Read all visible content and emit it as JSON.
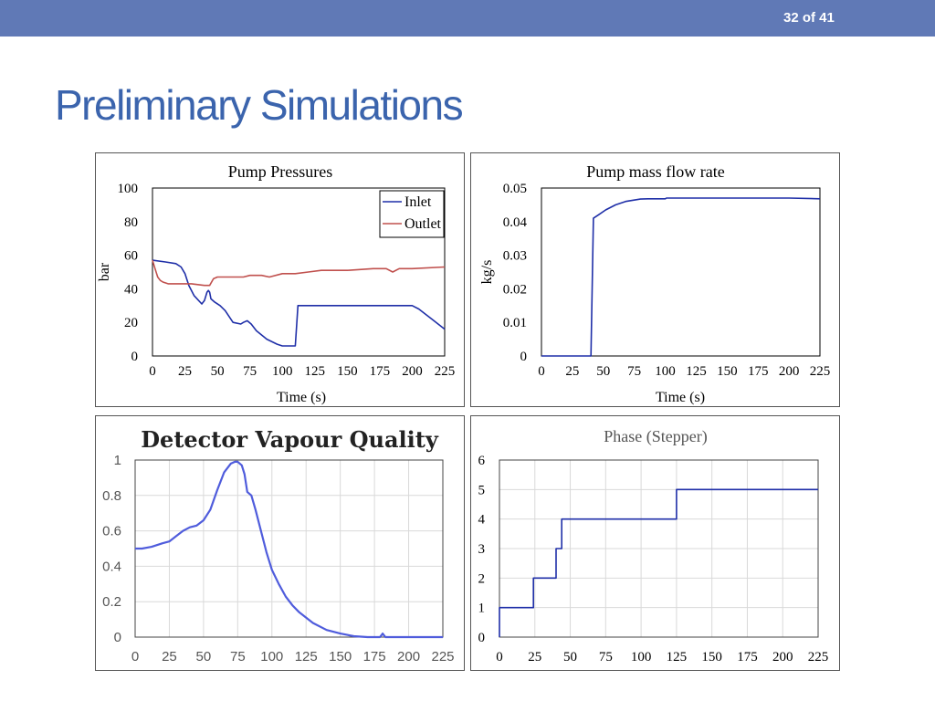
{
  "slide": {
    "counter": "32 of 41",
    "title": "Preliminary Simulations"
  },
  "colors": {
    "header_bar": "#6079b6",
    "title": "#3b64ad",
    "inlet": "#1f2fa8",
    "outlet": "#c0504d",
    "quality": "#4f5cdc",
    "phase": "#1f2fa8"
  },
  "chart_data": [
    {
      "id": "pump-pressures",
      "type": "line",
      "title": "Pump Pressures",
      "xlabel": "Time (s)",
      "ylabel": "bar",
      "xlim": [
        0,
        225
      ],
      "ylim": [
        0,
        100
      ],
      "xticks": [
        "0",
        "25",
        "50",
        "75",
        "100",
        "125",
        "150",
        "175",
        "200",
        "225"
      ],
      "yticks": [
        "0",
        "20",
        "40",
        "60",
        "80",
        "100"
      ],
      "grid": false,
      "legend": "top-right",
      "series": [
        {
          "name": "Inlet",
          "color": "#1f2fa8",
          "x": [
            0,
            10,
            18,
            22,
            25,
            28,
            32,
            38,
            40,
            42,
            43,
            44,
            45,
            48,
            52,
            56,
            62,
            68,
            70,
            73,
            76,
            80,
            88,
            96,
            100,
            106,
            110,
            112,
            200,
            205,
            215,
            225
          ],
          "y": [
            57,
            56,
            55,
            53,
            49,
            42,
            36,
            31,
            33,
            38,
            39,
            38,
            34,
            32,
            30,
            27,
            20,
            19,
            20,
            21,
            19,
            15,
            10,
            7,
            6,
            6,
            6,
            30,
            30,
            28,
            22,
            16
          ]
        },
        {
          "name": "Outlet",
          "color": "#c0504d",
          "x": [
            0,
            2,
            4,
            6,
            8,
            12,
            20,
            30,
            40,
            44,
            47,
            50,
            60,
            70,
            75,
            80,
            84,
            90,
            100,
            110,
            120,
            130,
            150,
            170,
            180,
            185,
            190,
            200,
            225
          ],
          "y": [
            57,
            52,
            47,
            45,
            44,
            43,
            43,
            43,
            42,
            42,
            46,
            47,
            47,
            47,
            48,
            48,
            48,
            47,
            49,
            49,
            50,
            51,
            51,
            52,
            52,
            50,
            52,
            52,
            53
          ]
        }
      ]
    },
    {
      "id": "pump-mass-flow",
      "type": "line",
      "title": "Pump mass flow rate",
      "xlabel": "Time (s)",
      "ylabel": "kg/s",
      "xlim": [
        0,
        225
      ],
      "ylim": [
        0,
        0.05
      ],
      "xticks": [
        "0",
        "25",
        "50",
        "75",
        "100",
        "125",
        "150",
        "175",
        "200",
        "225"
      ],
      "yticks": [
        "0",
        "0.01",
        "0.02",
        "0.03",
        "0.04",
        "0.05"
      ],
      "grid": false,
      "series": [
        {
          "color": "#1f2fa8",
          "x": [
            0,
            38,
            40,
            42,
            46,
            52,
            60,
            68,
            76,
            80,
            86,
            100,
            101,
            130,
            160,
            200,
            225
          ],
          "y": [
            0,
            0,
            0,
            0.041,
            0.042,
            0.0435,
            0.045,
            0.046,
            0.0465,
            0.0467,
            0.0468,
            0.0468,
            0.047,
            0.047,
            0.047,
            0.047,
            0.0468
          ]
        }
      ]
    },
    {
      "id": "detector-vapour-quality",
      "type": "line",
      "title": "Detector Vapour Quality",
      "xlabel": "",
      "ylabel": "",
      "xlim": [
        0,
        225
      ],
      "ylim": [
        0,
        1
      ],
      "xticks": [
        "0",
        "25",
        "50",
        "75",
        "100",
        "125",
        "150",
        "175",
        "200",
        "225"
      ],
      "yticks": [
        "0",
        "0.2",
        "0.4",
        "0.6",
        "0.8",
        "1"
      ],
      "grid": true,
      "series": [
        {
          "color": "#4f5cdc",
          "x": [
            0,
            5,
            12,
            20,
            25,
            30,
            35,
            40,
            45,
            50,
            55,
            60,
            65,
            70,
            73,
            75,
            78,
            80,
            82,
            85,
            88,
            92,
            96,
            100,
            105,
            110,
            115,
            120,
            130,
            140,
            150,
            160,
            170,
            175,
            179,
            180,
            181,
            182,
            183,
            185,
            225
          ],
          "y": [
            0.5,
            0.5,
            0.51,
            0.53,
            0.54,
            0.57,
            0.6,
            0.62,
            0.63,
            0.66,
            0.72,
            0.83,
            0.93,
            0.98,
            0.99,
            0.99,
            0.97,
            0.92,
            0.82,
            0.8,
            0.72,
            0.6,
            0.48,
            0.38,
            0.3,
            0.23,
            0.18,
            0.14,
            0.08,
            0.04,
            0.02,
            0.005,
            0,
            0,
            0,
            0.01,
            0.02,
            0.01,
            0,
            0,
            0
          ]
        }
      ]
    },
    {
      "id": "phase-stepper",
      "type": "line",
      "title": "Phase (Stepper)",
      "xlabel": "",
      "ylabel": "",
      "xlim": [
        0,
        225
      ],
      "ylim": [
        0,
        6
      ],
      "xticks": [
        "0",
        "25",
        "50",
        "75",
        "100",
        "125",
        "150",
        "175",
        "200",
        "225"
      ],
      "yticks": [
        "0",
        "1",
        "2",
        "3",
        "4",
        "5",
        "6"
      ],
      "grid": true,
      "series": [
        {
          "color": "#1f2fa8",
          "x": [
            0,
            0,
            24,
            24,
            40,
            40,
            44,
            44,
            125,
            125,
            225
          ],
          "y": [
            0,
            1,
            1,
            2,
            2,
            3,
            3,
            4,
            4,
            5,
            5
          ]
        }
      ]
    }
  ]
}
